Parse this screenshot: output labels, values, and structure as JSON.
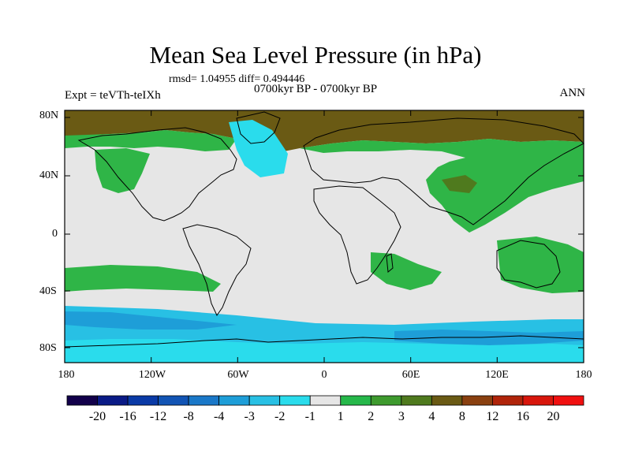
{
  "header": {
    "title": "Mean Sea Level Pressure (in hPa)",
    "stats": "rmsd= 1.04955 diff= 0.494446",
    "subtitle": "0700kyr BP - 0700kyr BP",
    "experiment": "Expt = teVTh-teIXh",
    "season": "ANN"
  },
  "axes": {
    "lat_labels": [
      "80N",
      "40N",
      "0",
      "40S",
      "80S"
    ],
    "lon_labels": [
      "180",
      "120W",
      "60W",
      "0",
      "60E",
      "120E",
      "180"
    ]
  },
  "colorbar": {
    "labels": [
      "-20",
      "-16",
      "-12",
      "-8",
      "-4",
      "-3",
      "-2",
      "-1",
      "1",
      "2",
      "3",
      "4",
      "8",
      "12",
      "16",
      "20"
    ],
    "colors": [
      "#12004a",
      "#0a1a86",
      "#0a3aa6",
      "#1254b4",
      "#1a78c8",
      "#1e9ed8",
      "#28c0e4",
      "#2adcec",
      "#e6e6e6",
      "#26b84a",
      "#3e9a2e",
      "#4f7a1e",
      "#6a5a14",
      "#8a4010",
      "#b0240a",
      "#d8160c",
      "#f01010"
    ]
  },
  "map_colors": {
    "background": "#e6e6e6",
    "green": "#2fb547",
    "brown": "#6a5a14",
    "olive": "#4f7a1e",
    "light_blue": "#28c0e4",
    "cyan": "#2adcec",
    "mid_blue": "#1e9ed8"
  }
}
